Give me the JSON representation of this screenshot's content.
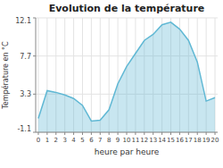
{
  "chart_data": {
    "type": "area",
    "title": "Evolution de la température",
    "xlabel": "heure par heure",
    "ylabel": "Température en °C",
    "x": [
      0,
      1,
      2,
      3,
      4,
      5,
      6,
      7,
      8,
      9,
      10,
      11,
      12,
      13,
      14,
      15,
      16,
      17,
      18,
      19,
      20
    ],
    "values": [
      0.5,
      3.7,
      3.5,
      3.2,
      2.8,
      2.0,
      0.2,
      0.3,
      1.5,
      4.5,
      6.5,
      8.0,
      9.5,
      10.2,
      11.3,
      11.6,
      10.8,
      9.5,
      7.0,
      2.5,
      2.9
    ],
    "color": "#60b8d4",
    "xlim": [
      -0.3,
      20.3
    ],
    "xticks": [
      0,
      1,
      2,
      3,
      4,
      5,
      6,
      7,
      8,
      9,
      10,
      11,
      12,
      13,
      14,
      15,
      16,
      17,
      18,
      19,
      20
    ],
    "ylim": [
      -1.1,
      12.1
    ],
    "yticks": [
      -1.1,
      3.3,
      7.7,
      12.1
    ],
    "grid": true
  }
}
